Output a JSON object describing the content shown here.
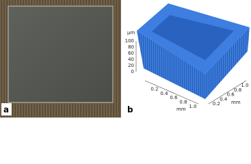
{
  "panels": [
    {
      "label": "a"
    },
    {
      "label": "b",
      "z_unit": "µm",
      "z_ticks": [
        "100",
        "80",
        "60",
        "40",
        "20",
        "0"
      ],
      "x_ticks": [
        "0.2",
        "0.4",
        "0.6",
        "0.8",
        "1.0"
      ],
      "x_unit": "mm",
      "y_ticks": [
        "0.2",
        "0.4",
        "0.6",
        "0.8",
        "1.0"
      ],
      "y_unit": "mm"
    }
  ]
}
